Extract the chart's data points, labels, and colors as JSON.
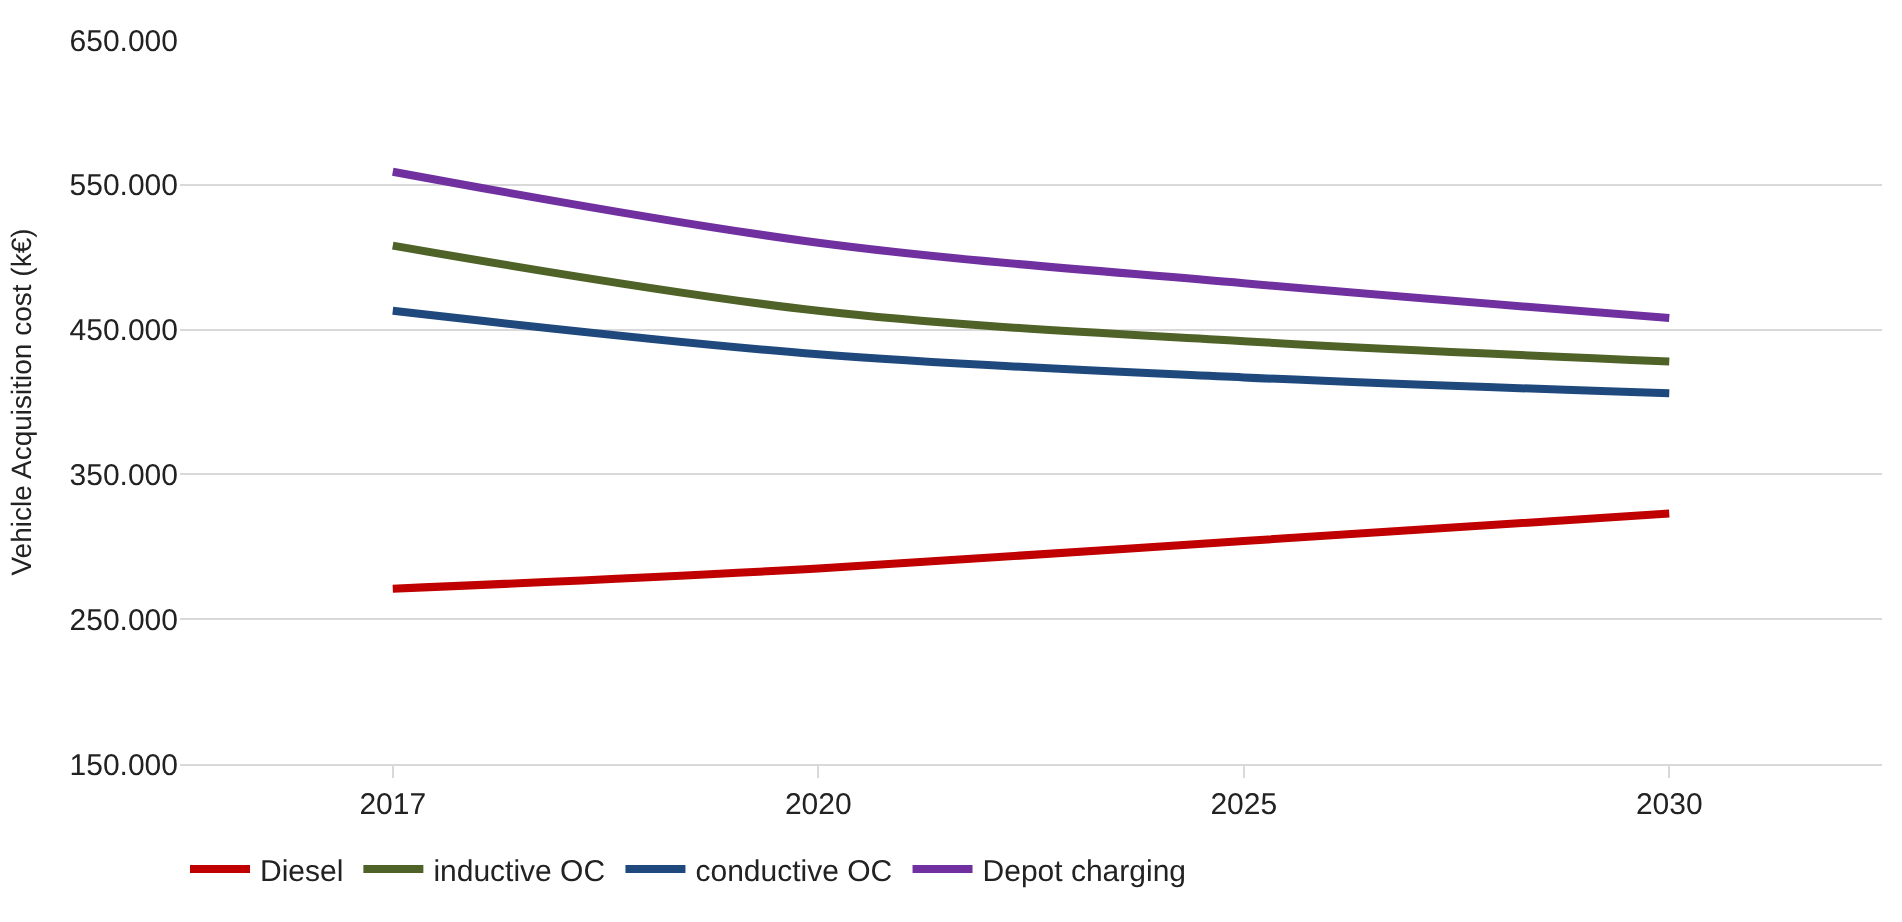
{
  "chart_data": {
    "type": "line",
    "ylabel": "Vehicle Acquisition cost (k€)",
    "categories": [
      "2017",
      "2020",
      "2025",
      "2030"
    ],
    "series": [
      {
        "name": "Diesel",
        "color": "#c00000",
        "values": [
          271,
          285,
          304,
          323
        ]
      },
      {
        "name": "inductive OC",
        "color": "#4f6228",
        "values": [
          508,
          463,
          442,
          428
        ]
      },
      {
        "name": "conductive OC",
        "color": "#1f497d",
        "values": [
          463,
          433,
          417,
          406
        ]
      },
      {
        "name": "Depot charging",
        "color": "#7030a0",
        "values": [
          559,
          510,
          482,
          458
        ]
      }
    ],
    "ylim": [
      150,
      650
    ],
    "yticks": [
      {
        "value": 150,
        "label": "150.000"
      },
      {
        "value": 250,
        "label": "250.000"
      },
      {
        "value": 350,
        "label": "350.000"
      },
      {
        "value": 450,
        "label": "450.000"
      },
      {
        "value": 550,
        "label": "550.000"
      },
      {
        "value": 650,
        "label": "650.000"
      }
    ],
    "grid": "y",
    "legend": "bottom",
    "marker": "none",
    "line_style": "solid"
  }
}
